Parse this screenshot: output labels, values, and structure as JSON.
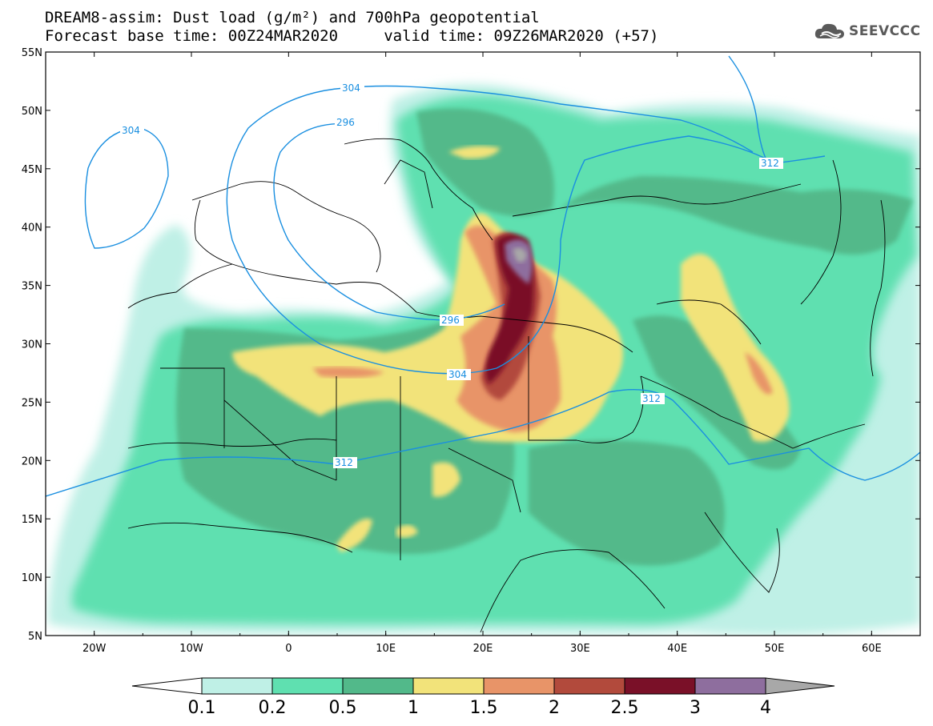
{
  "title": {
    "line1": "DREAM8-assim: Dust load (g/m²) and 700hPa geopotential",
    "line2": "Forecast base time: 00Z24MAR2020     valid time: 09Z26MAR2020 (+57)"
  },
  "logo": {
    "text": "SEEVCCC",
    "icon": "cloud-icon"
  },
  "axes": {
    "lon_ticks": [
      "20W",
      "10W",
      "0",
      "10E",
      "20E",
      "30E",
      "40E",
      "50E",
      "60E"
    ],
    "lat_ticks": [
      "55N",
      "50N",
      "45N",
      "40N",
      "35N",
      "30N",
      "25N",
      "20N",
      "15N",
      "10N",
      "5N"
    ],
    "lon_range": [
      -25,
      65
    ],
    "lat_range": [
      5,
      55
    ]
  },
  "colorbar": {
    "labels": [
      "0.1",
      "0.2",
      "0.5",
      "1",
      "1.5",
      "2",
      "2.5",
      "3",
      "4"
    ],
    "colors": [
      "#bff0e6",
      "#5fe0b0",
      "#52b98a",
      "#f2e37a",
      "#e89468",
      "#b24a3c",
      "#7a1028",
      "#8e6e9e",
      "#a8a8a8"
    ]
  },
  "contours": {
    "labels": [
      "304",
      "304",
      "296",
      "296",
      "304",
      "312",
      "312",
      "312"
    ],
    "color": "#1a8fe0"
  }
}
